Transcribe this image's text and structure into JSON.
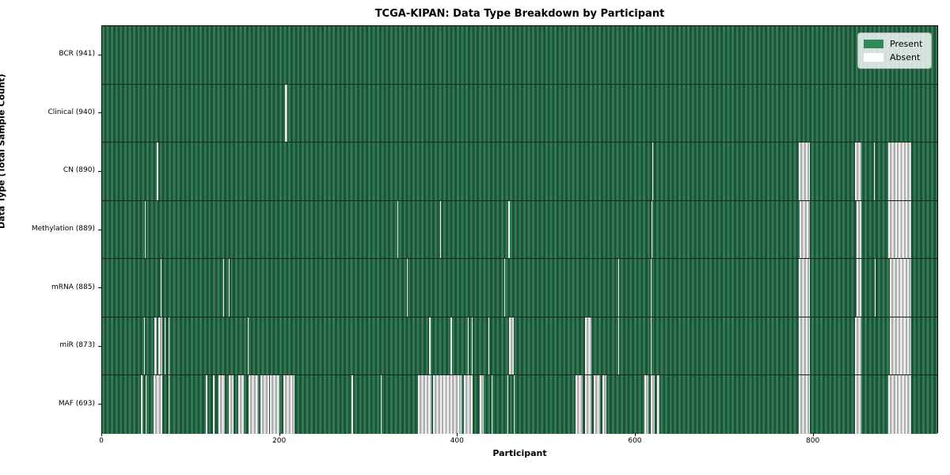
{
  "chart_data": {
    "type": "heatmap",
    "title": "TCGA-KIPAN: Data Type Breakdown by Participant",
    "xlabel": "Participant",
    "ylabel": "Data Type (Total Sample Count)",
    "x_ticks": [
      0,
      200,
      400,
      600,
      800
    ],
    "x_max": 941,
    "grid": false,
    "legend_position": "upper right",
    "legend": [
      {
        "label": "Present",
        "color": "#2e8b57"
      },
      {
        "label": "Absent",
        "color": "#ffffff"
      }
    ],
    "colors": {
      "present": "#2e8b57",
      "present_stripe_dark": "#1f5138",
      "absent_light": "#f0f0f0",
      "absent_dark": "#aeaeae",
      "plot_border": "#000000"
    },
    "rows": [
      {
        "id": "bcr",
        "label": "BCR (941)",
        "data_type": "BCR",
        "total_samples": 941,
        "absent_ranges": []
      },
      {
        "id": "clinical",
        "label": "Clinical (940)",
        "data_type": "Clinical",
        "total_samples": 940,
        "absent_ranges": [
          [
            206,
            208
          ]
        ]
      },
      {
        "id": "cn",
        "label": "CN (890)",
        "data_type": "CN",
        "total_samples": 890,
        "absent_ranges": [
          [
            61,
            63
          ],
          [
            619,
            620
          ],
          [
            783,
            796
          ],
          [
            847,
            854
          ],
          [
            868,
            869
          ],
          [
            884,
            910
          ]
        ]
      },
      {
        "id": "methylation",
        "label": "Methylation (889)",
        "data_type": "Methylation",
        "total_samples": 889,
        "absent_ranges": [
          [
            48,
            49
          ],
          [
            332,
            333
          ],
          [
            380,
            381
          ],
          [
            457,
            458
          ],
          [
            618,
            619
          ],
          [
            784,
            796
          ],
          [
            848,
            854
          ],
          [
            884,
            910
          ]
        ]
      },
      {
        "id": "mrna",
        "label": "mRNA (885)",
        "data_type": "mRNA",
        "total_samples": 885,
        "absent_ranges": [
          [
            66,
            67
          ],
          [
            136,
            137
          ],
          [
            142,
            143
          ],
          [
            343,
            344
          ],
          [
            452,
            453
          ],
          [
            580,
            581
          ],
          [
            617,
            618
          ],
          [
            783,
            796
          ],
          [
            848,
            854
          ],
          [
            869,
            870
          ],
          [
            886,
            910
          ]
        ]
      },
      {
        "id": "mir",
        "label": "miR (873)",
        "data_type": "miR",
        "total_samples": 873,
        "absent_ranges": [
          [
            47,
            48
          ],
          [
            59,
            61
          ],
          [
            63,
            68
          ],
          [
            70,
            71
          ],
          [
            75,
            76
          ],
          [
            164,
            165
          ],
          [
            368,
            369
          ],
          [
            392,
            393
          ],
          [
            411,
            412
          ],
          [
            416,
            417
          ],
          [
            434,
            435
          ],
          [
            458,
            463
          ],
          [
            543,
            550
          ],
          [
            580,
            581
          ],
          [
            617,
            618
          ],
          [
            783,
            796
          ],
          [
            847,
            854
          ],
          [
            886,
            910
          ]
        ]
      },
      {
        "id": "maf",
        "label": "MAF (693)",
        "data_type": "MAF",
        "total_samples": 693,
        "absent_ranges": [
          [
            44,
            45
          ],
          [
            49,
            50
          ],
          [
            58,
            68
          ],
          [
            75,
            76
          ],
          [
            117,
            118
          ],
          [
            125,
            126
          ],
          [
            131,
            138
          ],
          [
            142,
            148
          ],
          [
            153,
            159
          ],
          [
            165,
            175
          ],
          [
            178,
            188
          ],
          [
            189,
            199
          ],
          [
            204,
            216
          ],
          [
            280,
            282
          ],
          [
            313,
            314
          ],
          [
            355,
            370
          ],
          [
            372,
            404
          ],
          [
            407,
            417
          ],
          [
            425,
            429
          ],
          [
            438,
            439
          ],
          [
            456,
            457
          ],
          [
            463,
            464
          ],
          [
            532,
            540
          ],
          [
            543,
            550
          ],
          [
            553,
            560
          ],
          [
            563,
            567
          ],
          [
            610,
            614
          ],
          [
            617,
            621
          ],
          [
            624,
            627
          ],
          [
            783,
            796
          ],
          [
            847,
            854
          ],
          [
            884,
            910
          ]
        ]
      }
    ]
  }
}
